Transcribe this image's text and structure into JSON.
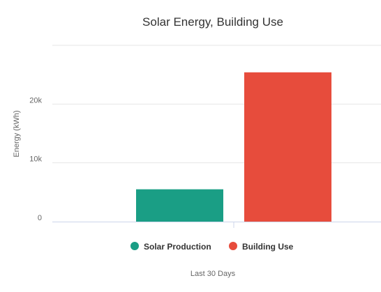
{
  "chart_data": {
    "type": "bar",
    "title": "Solar Energy, Building Use",
    "ylabel": "Energy (kWh)",
    "category": "Last 30 Days",
    "ylim": [
      0,
      30000
    ],
    "yticks": [
      {
        "value": 0,
        "label": "0"
      },
      {
        "value": 10000,
        "label": "10k"
      },
      {
        "value": 20000,
        "label": "20k"
      }
    ],
    "series": [
      {
        "name": "Solar Production",
        "value": 5500,
        "color": "#1a9e85"
      },
      {
        "name": "Building Use",
        "value": 25400,
        "color": "#e74c3c"
      }
    ],
    "grid": true,
    "legend": "bottom"
  }
}
